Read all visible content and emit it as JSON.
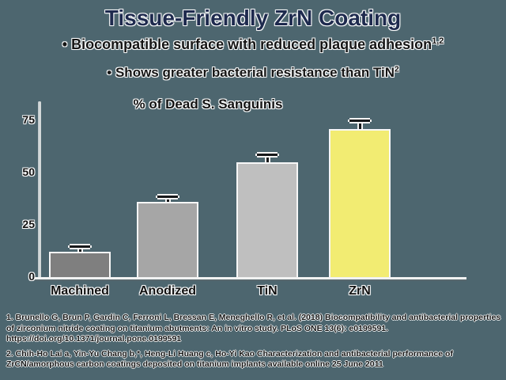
{
  "slide": {
    "title": "Tissue-Friendly ZrN Coating",
    "bullets": [
      {
        "text": "• Biocompatible surface with reduced plaque adhesion",
        "sup": "1,2"
      },
      {
        "text": "• Shows greater bacterial resistance than TiN",
        "sup": "2"
      }
    ]
  },
  "chart_data": {
    "type": "bar",
    "title": "% of Dead S. Sanguinis",
    "categories": [
      "Machined",
      "Anodized",
      "TiN",
      "ZrN"
    ],
    "values": [
      12,
      36,
      55,
      71
    ],
    "error_plus": [
      2,
      2,
      3,
      3.5
    ],
    "bar_colors": [
      "#7f7f7f",
      "#a6a6a6",
      "#bfbfbf",
      "#f2ec72"
    ],
    "yticks": [
      0,
      25,
      50,
      75
    ],
    "ylim": [
      0,
      83
    ],
    "xlabel": "",
    "ylabel": "",
    "grid": false,
    "legend": "none",
    "error_bar_color": "#17181a",
    "highlight_category": "ZrN"
  },
  "footnotes": [
    "1. Brunello G, Brun P, Gardin C, Ferroni L, Bressan E, Meneghello R, et al. (2018) Biocompatibility and antibacterial properties of zirconium nitride coating on titanium abutments: An in vitro study. PLoS ONE 13(6): e0199591. https://doi.org/10.1371/journal.pone.0199591",
    "2. Chih-Ho Lai a, Yin-Yu Chang b,*, Heng-Li Huang c, Ho-Yi Kao Characterization and antibacterial performance of ZrCN/amorphous carbon coatings deposited on titanium implants available online 25 June 2011"
  ],
  "colors": {
    "background": "#4d666f",
    "title_text": "#1e2a4e",
    "body_text": "#141414",
    "axis_line": "#d3d8d8",
    "baseline": "#f1f2f2",
    "highlight_bar": "#f2ec72"
  }
}
